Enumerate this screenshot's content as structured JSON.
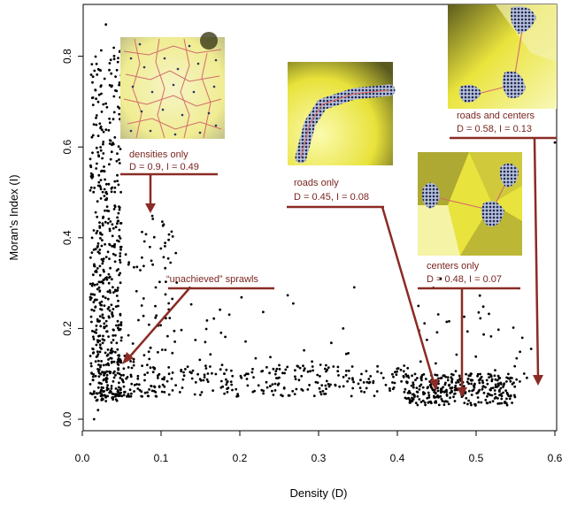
{
  "chart_data": {
    "type": "scatter",
    "title": "",
    "xlabel": "Density (D)",
    "ylabel": "Moran's Index (I)",
    "xlim": [
      0.0,
      0.6
    ],
    "ylim": [
      0.0,
      0.87
    ],
    "xticks": [
      "0.0",
      "0.1",
      "0.2",
      "0.3",
      "0.4",
      "0.5",
      "0.6"
    ],
    "yticks": [
      "0.0",
      "0.2",
      "0.4",
      "0.6",
      "0.8"
    ],
    "grid": false,
    "point_color": "#000000",
    "annotation_color": "#8b2b25",
    "clusters": [
      {
        "x_min": 0.01,
        "x_max": 0.05,
        "y_min": 0.04,
        "y_max": 0.82,
        "n": 520
      },
      {
        "x_min": 0.02,
        "x_max": 0.12,
        "y_min": 0.05,
        "y_max": 0.45,
        "n": 150
      },
      {
        "x_min": 0.05,
        "x_max": 0.42,
        "y_min": 0.05,
        "y_max": 0.12,
        "n": 260
      },
      {
        "x_min": 0.1,
        "x_max": 0.35,
        "y_min": 0.1,
        "y_max": 0.3,
        "n": 40
      },
      {
        "x_min": 0.41,
        "x_max": 0.55,
        "y_min": 0.03,
        "y_max": 0.1,
        "n": 300
      },
      {
        "x_min": 0.42,
        "x_max": 0.57,
        "y_min": 0.08,
        "y_max": 0.3,
        "n": 45
      }
    ],
    "extra_points": [
      [
        0.03,
        0.87
      ],
      [
        0.015,
        0.0
      ],
      [
        0.02,
        0.02
      ],
      [
        0.6,
        0.61
      ],
      [
        0.455,
        0.31
      ],
      [
        0.51,
        0.38
      ],
      [
        0.55,
        0.47
      ],
      [
        0.5,
        0.45
      ]
    ],
    "annotations": [
      {
        "text": "densities only",
        "text2": "D = 0.9, I = 0.49",
        "inset": "densities"
      },
      {
        "text": "“unachieved” sprawls",
        "text2": "",
        "inset": ""
      },
      {
        "text": "roads only",
        "text2": "D = 0.45, I = 0.08",
        "inset": "roads"
      },
      {
        "text": "centers only",
        "text2": "D = 0.48, I = 0.07",
        "inset": "centers"
      },
      {
        "text": "roads and centers",
        "text2": "D = 0.58, I = 0.13",
        "inset": "roadscenters"
      }
    ]
  }
}
